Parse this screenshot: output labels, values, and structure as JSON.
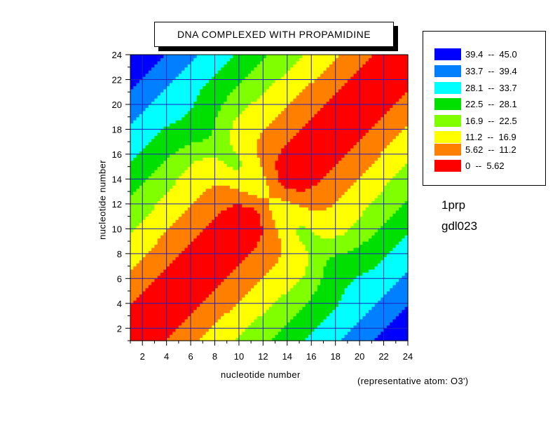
{
  "chart_data": {
    "type": "heatmap",
    "title": "DNA COMPLEXED WITH PROPAMIDINE",
    "xlabel": "nucleotide number",
    "ylabel": "nucleotide number",
    "xlim": [
      1,
      24
    ],
    "ylim": [
      1,
      24
    ],
    "x_ticks": [
      2,
      4,
      6,
      8,
      10,
      12,
      14,
      16,
      18,
      20,
      22,
      24
    ],
    "y_ticks": [
      2,
      4,
      6,
      8,
      10,
      12,
      14,
      16,
      18,
      20,
      22,
      24
    ],
    "grid": true,
    "legend_position": "top-right",
    "note": "(representative atom: O3')",
    "identifiers": [
      "1prp",
      "gdl023"
    ],
    "levels": [
      {
        "label": "39.4  --  45.0",
        "min": 39.4,
        "max": 45.0,
        "color": "#0000ff"
      },
      {
        "label": "33.7  --  39.4",
        "min": 33.7,
        "max": 39.4,
        "color": "#0080ff"
      },
      {
        "label": "28.1  --  33.7",
        "min": 28.1,
        "max": 33.7,
        "color": "#00ffff"
      },
      {
        "label": "22.5  --  28.1",
        "min": 22.5,
        "max": 28.1,
        "color": "#00e000"
      },
      {
        "label": "16.9  --  22.5",
        "min": 16.9,
        "max": 22.5,
        "color": "#80ff00"
      },
      {
        "label": "11.2  --  16.9",
        "min": 11.2,
        "max": 16.9,
        "color": "#ffff00"
      },
      {
        "label": "5.62  --  11.2",
        "min": 5.62,
        "max": 11.2,
        "color": "#ff8000"
      },
      {
        "label": "0  --  5.62",
        "min": 0,
        "max": 5.62,
        "color": "#ff0000"
      }
    ]
  }
}
